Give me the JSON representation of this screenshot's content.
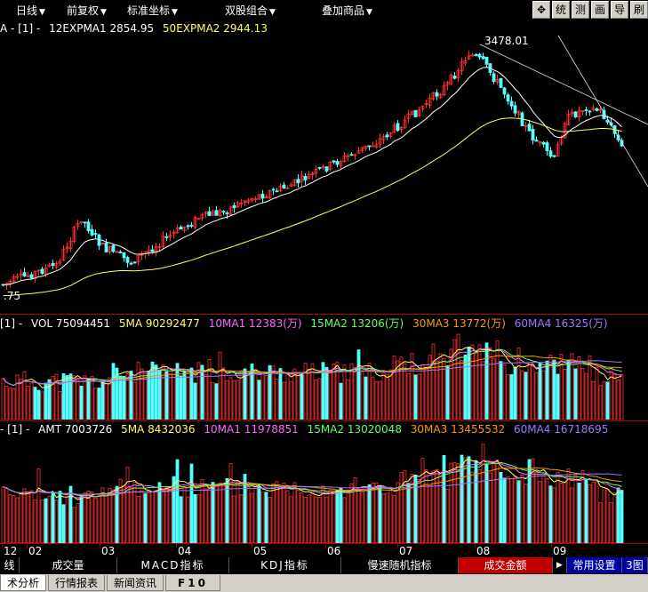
{
  "menu": [
    {
      "label": "日线",
      "name": "period-menu"
    },
    {
      "label": "前复权",
      "name": "adjust-menu"
    },
    {
      "label": "标准坐标",
      "name": "axis-menu"
    },
    {
      "label": "双股组合",
      "name": "combine-menu"
    },
    {
      "label": "叠加商品",
      "name": "overlay-menu"
    }
  ],
  "toolbar": [
    {
      "label": "✥",
      "name": "move-cursor-icon"
    },
    {
      "label": "统",
      "name": "stat-button"
    },
    {
      "label": "测",
      "name": "measure-button"
    },
    {
      "label": "画",
      "name": "draw-button"
    },
    {
      "label": "导",
      "name": "export-button"
    },
    {
      "label": "刷",
      "name": "refresh-button"
    }
  ],
  "price_panel": {
    "legend_prefix": "A - [1] -",
    "ema1": "12EXPMA1 2854.95",
    "ema2": "50EXPMA2 2944.13",
    "high_label": "3478.01",
    "low_label": ".75"
  },
  "vol_panel": {
    "prefix": "[1] -",
    "vol": "VOL 75094451",
    "ma5": "5MA 90292477",
    "ma10": "10MA1 12383(万)",
    "ma15": "15MA2 13206(万)",
    "ma30": "30MA3 13772(万)",
    "ma60": "60MA4 16325(万)"
  },
  "amt_panel": {
    "prefix": "- [1] -",
    "amt": "AMT 7003726",
    "ma5": "5MA 8432036",
    "ma10": "10MA1 11978851",
    "ma15": "15MA2 13020048",
    "ma30": "30MA3 13455532",
    "ma60": "60MA4 16718695"
  },
  "x_axis": [
    "12",
    "02",
    "03",
    "04",
    "05",
    "06",
    "07",
    "08",
    "09"
  ],
  "bottom_tabs": [
    {
      "label": "线",
      "name": "tab-line"
    },
    {
      "label": "成交量",
      "name": "tab-volume"
    },
    {
      "label": "MACD指标",
      "name": "tab-macd"
    },
    {
      "label": "KDJ指标",
      "name": "tab-kdj"
    },
    {
      "label": "慢速随机指标",
      "name": "tab-slow-stochastic"
    },
    {
      "label": "成交金额",
      "name": "tab-turnover"
    },
    {
      "label": "常用设置",
      "name": "tab-common-settings"
    },
    {
      "label": "3图",
      "name": "tab-3-charts"
    }
  ],
  "status_tabs": [
    {
      "label": "术分析",
      "name": "status-tab-technical"
    },
    {
      "label": "行情报表",
      "name": "status-tab-quotes"
    },
    {
      "label": "新闻资讯",
      "name": "status-tab-news"
    },
    {
      "label": "F10",
      "name": "status-tab-f10"
    }
  ],
  "colors": {
    "up": "#ff3030",
    "down": "#54ffff",
    "ema1": "#ffffff",
    "ema2": "#ffff66",
    "ma10": "#ff66ff",
    "ma15": "#66ff66",
    "ma30": "#ff9900",
    "ma60": "#9a7aff",
    "axis": "#b00000"
  }
}
